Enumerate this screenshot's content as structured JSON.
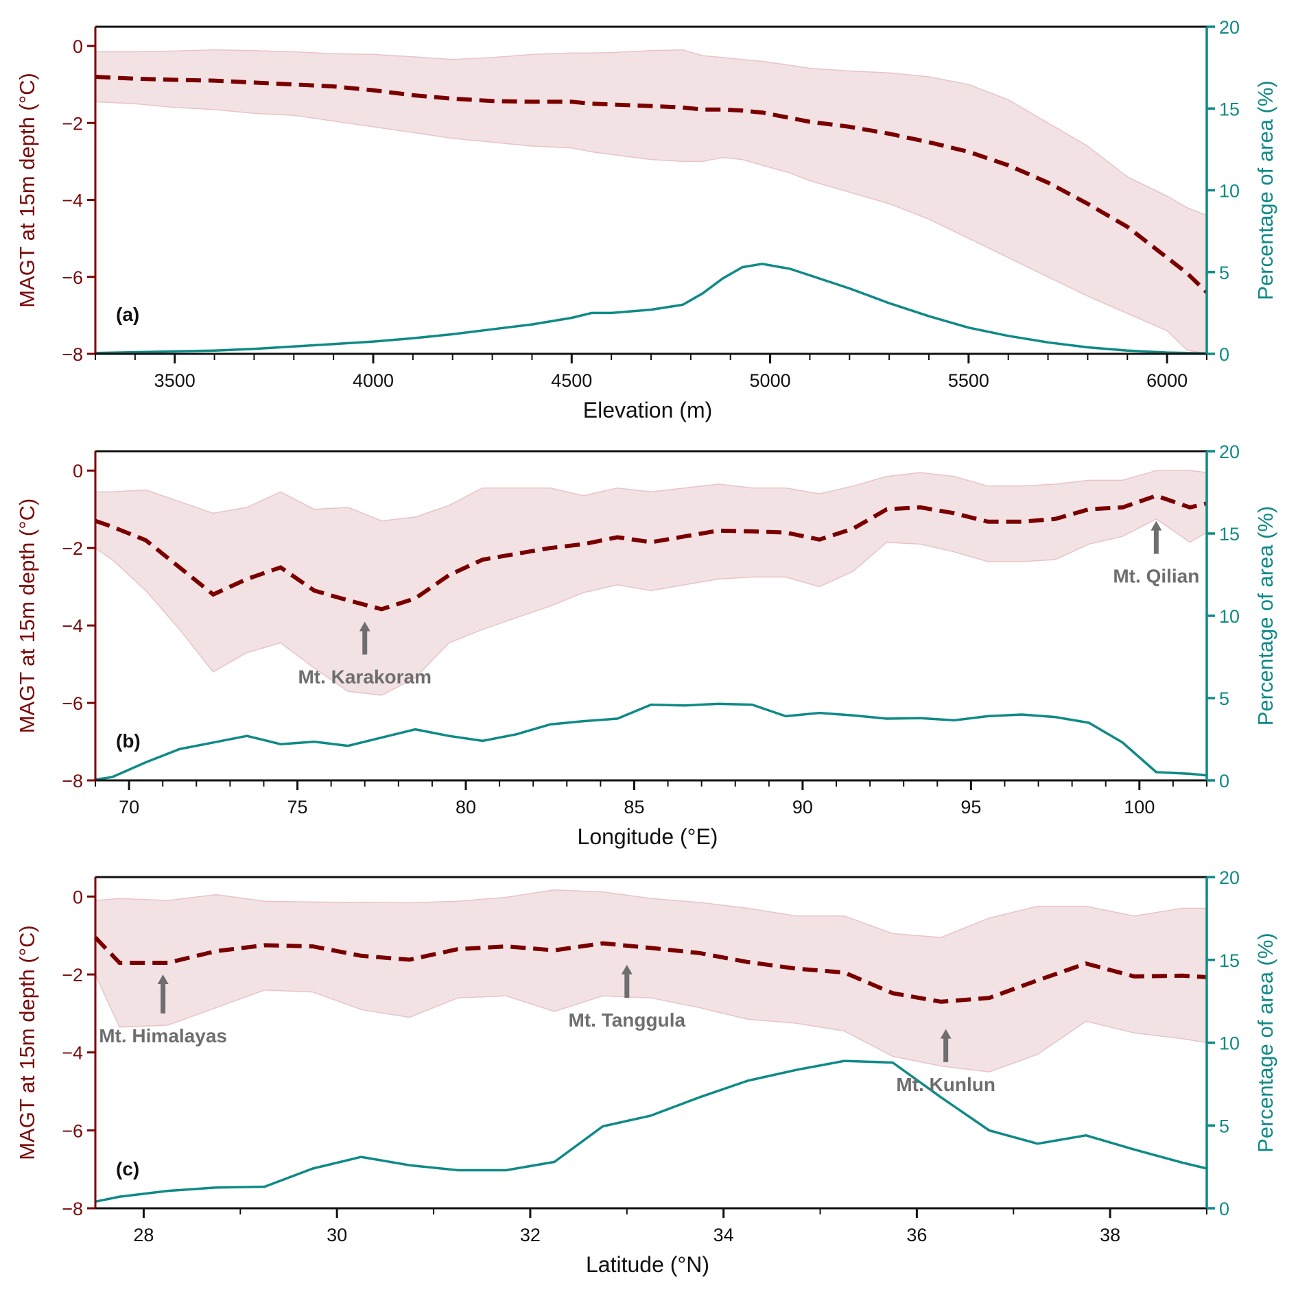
{
  "colors": {
    "magt": "#7a0000",
    "magt_band": "#f3e2e4",
    "magt_band_edge": "#e8c4c6",
    "area": "#0f8a86",
    "annotation": "#6e6e6e",
    "frame": "#111111"
  },
  "chart_data": [
    {
      "panel": "(a)",
      "type": "line",
      "xlabel": "Elevation (m)",
      "ylabel_left": "MAGT at 15m depth (°C)",
      "ylabel_right": "Percentage of area (%)",
      "xlim": [
        3300,
        6100
      ],
      "ylim_left": [
        -8,
        0.5
      ],
      "ylim_right": [
        0,
        20
      ],
      "xticks": [
        3500,
        4000,
        4500,
        5000,
        5500,
        6000
      ],
      "xminor_step": 100,
      "yticks_left": [
        0,
        -2,
        -4,
        -6,
        -8
      ],
      "yticks_right": [
        0,
        5,
        10,
        15,
        20
      ],
      "grid": false,
      "x": [
        3300,
        3400,
        3500,
        3600,
        3700,
        3800,
        3900,
        4000,
        4100,
        4200,
        4300,
        4400,
        4500,
        4550,
        4600,
        4700,
        4780,
        4830,
        4880,
        4930,
        4980,
        5050,
        5100,
        5200,
        5300,
        5400,
        5500,
        5600,
        5700,
        5800,
        5900,
        6000,
        6050,
        6100
      ],
      "series": [
        {
          "name": "MAGT mean",
          "axis": "left",
          "style": "dashed",
          "values": [
            -0.8,
            -0.85,
            -0.88,
            -0.9,
            -0.95,
            -1.0,
            -1.05,
            -1.15,
            -1.28,
            -1.37,
            -1.43,
            -1.45,
            -1.45,
            -1.5,
            -1.52,
            -1.56,
            -1.6,
            -1.65,
            -1.65,
            -1.68,
            -1.73,
            -1.87,
            -1.97,
            -2.1,
            -2.28,
            -2.5,
            -2.75,
            -3.1,
            -3.55,
            -4.1,
            -4.7,
            -5.5,
            -5.9,
            -6.4
          ]
        },
        {
          "name": "MAGT upper",
          "axis": "left",
          "style": "band-upper",
          "values": [
            -0.15,
            -0.15,
            -0.13,
            -0.1,
            -0.12,
            -0.15,
            -0.2,
            -0.22,
            -0.28,
            -0.35,
            -0.3,
            -0.22,
            -0.18,
            -0.18,
            -0.17,
            -0.12,
            -0.1,
            -0.25,
            -0.3,
            -0.35,
            -0.4,
            -0.5,
            -0.58,
            -0.65,
            -0.7,
            -0.8,
            -1.0,
            -1.4,
            -2.0,
            -2.6,
            -3.4,
            -3.9,
            -4.2,
            -4.4
          ]
        },
        {
          "name": "MAGT lower",
          "axis": "left",
          "style": "band-lower",
          "values": [
            -1.45,
            -1.5,
            -1.6,
            -1.65,
            -1.75,
            -1.8,
            -1.95,
            -2.1,
            -2.25,
            -2.4,
            -2.5,
            -2.6,
            -2.65,
            -2.75,
            -2.82,
            -2.95,
            -3.0,
            -3.0,
            -2.9,
            -2.95,
            -3.1,
            -3.3,
            -3.5,
            -3.8,
            -4.1,
            -4.5,
            -5.0,
            -5.5,
            -6.0,
            -6.5,
            -6.95,
            -7.4,
            -7.9,
            -8.0
          ]
        },
        {
          "name": "Percentage of area",
          "axis": "right",
          "style": "solid",
          "values": [
            0.05,
            0.1,
            0.15,
            0.2,
            0.3,
            0.45,
            0.6,
            0.75,
            0.95,
            1.2,
            1.5,
            1.8,
            2.2,
            2.5,
            2.5,
            2.7,
            3.0,
            3.7,
            4.6,
            5.3,
            5.5,
            5.2,
            4.8,
            4.0,
            3.1,
            2.3,
            1.6,
            1.1,
            0.7,
            0.4,
            0.2,
            0.08,
            0.05,
            0.03
          ]
        }
      ],
      "annotations": []
    },
    {
      "panel": "(b)",
      "type": "line",
      "xlabel": "Longitude (°E)",
      "ylabel_left": "MAGT at 15m depth (°C)",
      "ylabel_right": "Percentage of area (%)",
      "xlim": [
        69,
        102
      ],
      "ylim_left": [
        -8,
        0.5
      ],
      "ylim_right": [
        0,
        20
      ],
      "xticks": [
        70,
        75,
        80,
        85,
        90,
        95,
        100
      ],
      "xminor_step": 1,
      "yticks_left": [
        0,
        -2,
        -4,
        -6,
        -8
      ],
      "yticks_right": [
        0,
        5,
        10,
        15,
        20
      ],
      "grid": false,
      "x": [
        69,
        69.5,
        70.5,
        71.5,
        72.5,
        73.5,
        74.5,
        75.5,
        76.5,
        77.5,
        78.5,
        79.5,
        80.5,
        81.5,
        82.5,
        83.5,
        84.5,
        85.5,
        86.5,
        87.5,
        88.5,
        89.5,
        90.5,
        91.5,
        92.5,
        93.5,
        94.5,
        95.5,
        96.5,
        97.5,
        98.5,
        99.5,
        100.5,
        101.5,
        102
      ],
      "series": [
        {
          "name": "MAGT mean",
          "axis": "left",
          "style": "dashed",
          "values": [
            -1.3,
            -1.45,
            -1.8,
            -2.5,
            -3.2,
            -2.8,
            -2.5,
            -3.1,
            -3.35,
            -3.58,
            -3.3,
            -2.7,
            -2.3,
            -2.15,
            -2.0,
            -1.9,
            -1.72,
            -1.85,
            -1.7,
            -1.55,
            -1.57,
            -1.6,
            -1.78,
            -1.5,
            -1.0,
            -0.95,
            -1.1,
            -1.32,
            -1.32,
            -1.25,
            -1.0,
            -0.95,
            -0.65,
            -0.95,
            -0.85
          ]
        },
        {
          "name": "MAGT upper",
          "axis": "left",
          "style": "band-upper",
          "values": [
            -0.55,
            -0.55,
            -0.5,
            -0.8,
            -1.1,
            -0.95,
            -0.55,
            -1.0,
            -0.95,
            -1.3,
            -1.2,
            -0.9,
            -0.45,
            -0.45,
            -0.45,
            -0.65,
            -0.45,
            -0.55,
            -0.45,
            -0.35,
            -0.45,
            -0.45,
            -0.6,
            -0.4,
            -0.15,
            -0.05,
            -0.15,
            -0.4,
            -0.4,
            -0.35,
            -0.25,
            -0.25,
            0.0,
            0.0,
            -0.05
          ]
        },
        {
          "name": "MAGT lower",
          "axis": "left",
          "style": "band-lower",
          "values": [
            -2.0,
            -2.3,
            -3.1,
            -4.1,
            -5.2,
            -4.7,
            -4.45,
            -5.1,
            -5.7,
            -5.8,
            -5.35,
            -4.45,
            -4.1,
            -3.8,
            -3.5,
            -3.15,
            -2.95,
            -3.1,
            -2.95,
            -2.8,
            -2.75,
            -2.75,
            -3.0,
            -2.6,
            -1.85,
            -1.9,
            -2.1,
            -2.35,
            -2.35,
            -2.3,
            -1.9,
            -1.7,
            -1.25,
            -1.85,
            -1.6
          ]
        },
        {
          "name": "Percentage of area",
          "axis": "right",
          "style": "solid",
          "values": [
            0.05,
            0.2,
            1.1,
            1.9,
            2.3,
            2.7,
            2.2,
            2.35,
            2.1,
            2.6,
            3.1,
            2.7,
            2.4,
            2.8,
            3.4,
            3.6,
            3.75,
            4.6,
            4.55,
            4.65,
            4.6,
            3.9,
            4.1,
            3.95,
            3.75,
            3.78,
            3.65,
            3.9,
            4.0,
            3.85,
            3.5,
            2.3,
            0.5,
            0.4,
            0.3
          ]
        }
      ],
      "annotations": [
        {
          "text": "Mt. Karakoram",
          "x": 77.0,
          "arrow_tip": -3.9,
          "arrow_tail": -4.75
        },
        {
          "text": "Mt. Qilian",
          "x": 100.5,
          "arrow_tip": -1.3,
          "arrow_tail": -2.15
        }
      ]
    },
    {
      "panel": "(c)",
      "type": "line",
      "xlabel": "Latitude (°N)",
      "ylabel_left": "MAGT at 15m depth (°C)",
      "ylabel_right": "Percentage of area (%)",
      "xlim": [
        27.5,
        39
      ],
      "ylim_left": [
        -8,
        0.5
      ],
      "ylim_right": [
        0,
        20
      ],
      "xticks": [
        28,
        30,
        32,
        34,
        36,
        38
      ],
      "xminor_step": 1,
      "yticks_left": [
        0,
        -2,
        -4,
        -6,
        -8
      ],
      "yticks_right": [
        0,
        5,
        10,
        15,
        20
      ],
      "grid": false,
      "x": [
        27.5,
        27.75,
        28.25,
        28.75,
        29.25,
        29.75,
        30.25,
        30.75,
        31.25,
        31.75,
        32.25,
        32.75,
        33.25,
        33.75,
        34.25,
        34.75,
        35.25,
        35.75,
        36.25,
        36.75,
        37.25,
        37.75,
        38.25,
        38.75,
        39
      ],
      "series": [
        {
          "name": "MAGT mean",
          "axis": "left",
          "style": "dashed",
          "values": [
            -1.05,
            -1.7,
            -1.7,
            -1.4,
            -1.25,
            -1.28,
            -1.52,
            -1.62,
            -1.35,
            -1.28,
            -1.38,
            -1.2,
            -1.32,
            -1.45,
            -1.68,
            -1.85,
            -1.95,
            -2.48,
            -2.7,
            -2.6,
            -2.15,
            -1.72,
            -2.05,
            -2.03,
            -2.07
          ]
        },
        {
          "name": "MAGT upper",
          "axis": "left",
          "style": "band-upper",
          "values": [
            -0.1,
            -0.05,
            -0.1,
            0.05,
            -0.12,
            -0.14,
            -0.15,
            -0.16,
            -0.12,
            -0.02,
            0.17,
            0.12,
            -0.05,
            -0.15,
            -0.3,
            -0.5,
            -0.5,
            -0.95,
            -1.05,
            -0.55,
            -0.25,
            -0.25,
            -0.5,
            -0.3,
            -0.3
          ]
        },
        {
          "name": "MAGT lower",
          "axis": "left",
          "style": "band-lower",
          "values": [
            -2.0,
            -3.35,
            -3.3,
            -2.85,
            -2.4,
            -2.45,
            -2.9,
            -3.1,
            -2.6,
            -2.55,
            -2.95,
            -2.55,
            -2.6,
            -2.85,
            -3.15,
            -3.25,
            -3.45,
            -4.1,
            -4.35,
            -4.5,
            -4.05,
            -3.2,
            -3.5,
            -3.65,
            -3.75
          ]
        },
        {
          "name": "Percentage of area",
          "axis": "right",
          "style": "solid",
          "values": [
            0.4,
            0.7,
            1.05,
            1.25,
            1.3,
            2.4,
            3.1,
            2.6,
            2.3,
            2.3,
            2.8,
            4.95,
            5.6,
            6.7,
            7.7,
            8.35,
            8.9,
            8.8,
            6.7,
            4.7,
            3.9,
            4.4,
            3.55,
            2.75,
            2.4
          ]
        }
      ],
      "annotations": [
        {
          "text": "Mt. Himalayas",
          "x": 28.2,
          "arrow_tip": -2.0,
          "arrow_tail": -3.0
        },
        {
          "text": "Mt. Tanggula",
          "x": 33.0,
          "arrow_tip": -1.75,
          "arrow_tail": -2.6
        },
        {
          "text": "Mt. Kunlun",
          "x": 36.3,
          "arrow_tip": -3.4,
          "arrow_tail": -4.25
        }
      ]
    }
  ]
}
